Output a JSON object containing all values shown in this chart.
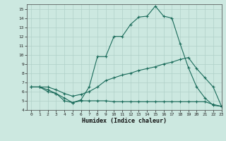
{
  "xlabel": "Humidex (Indice chaleur)",
  "xlim": [
    -0.5,
    23
  ],
  "ylim": [
    4,
    15.5
  ],
  "xticks": [
    0,
    1,
    2,
    3,
    4,
    5,
    6,
    7,
    8,
    9,
    10,
    11,
    12,
    13,
    14,
    15,
    16,
    17,
    18,
    19,
    20,
    21,
    22,
    23
  ],
  "yticks": [
    4,
    5,
    6,
    7,
    8,
    9,
    10,
    11,
    12,
    13,
    14,
    15
  ],
  "line_color": "#1a6b5a",
  "bg_color": "#cce8e0",
  "grid_major_color": "#b0d0c8",
  "grid_minor_color": "#b0d0c8",
  "series": [
    {
      "x": [
        0,
        1,
        2,
        3,
        4,
        5,
        6,
        7,
        8,
        9,
        10,
        11,
        12,
        13,
        14,
        15,
        16,
        17,
        18,
        19,
        20,
        21,
        22,
        23
      ],
      "y": [
        6.5,
        6.5,
        6.0,
        5.8,
        5.3,
        4.8,
        5.1,
        6.5,
        9.8,
        9.8,
        12.0,
        12.0,
        13.3,
        14.1,
        14.2,
        15.3,
        14.2,
        14.0,
        11.2,
        8.6,
        6.5,
        5.3,
        4.5,
        4.4
      ]
    },
    {
      "x": [
        0,
        1,
        2,
        3,
        4,
        5,
        6,
        7,
        8,
        9,
        10,
        11,
        12,
        13,
        14,
        15,
        16,
        17,
        18,
        19,
        20,
        21,
        22,
        23
      ],
      "y": [
        6.5,
        6.5,
        6.5,
        6.2,
        5.8,
        5.5,
        5.7,
        6.0,
        6.5,
        7.2,
        7.5,
        7.8,
        8.0,
        8.3,
        8.5,
        8.7,
        9.0,
        9.2,
        9.5,
        9.7,
        8.5,
        7.5,
        6.5,
        4.4
      ]
    },
    {
      "x": [
        0,
        1,
        2,
        3,
        4,
        5,
        6,
        7,
        8,
        9,
        10,
        11,
        12,
        13,
        14,
        15,
        16,
        17,
        18,
        19,
        20,
        21,
        22,
        23
      ],
      "y": [
        6.5,
        6.5,
        6.2,
        5.8,
        5.0,
        4.8,
        5.0,
        5.0,
        5.0,
        5.0,
        4.9,
        4.9,
        4.9,
        4.9,
        4.9,
        4.9,
        4.9,
        4.9,
        4.9,
        4.9,
        4.9,
        4.9,
        4.6,
        4.4
      ]
    }
  ]
}
